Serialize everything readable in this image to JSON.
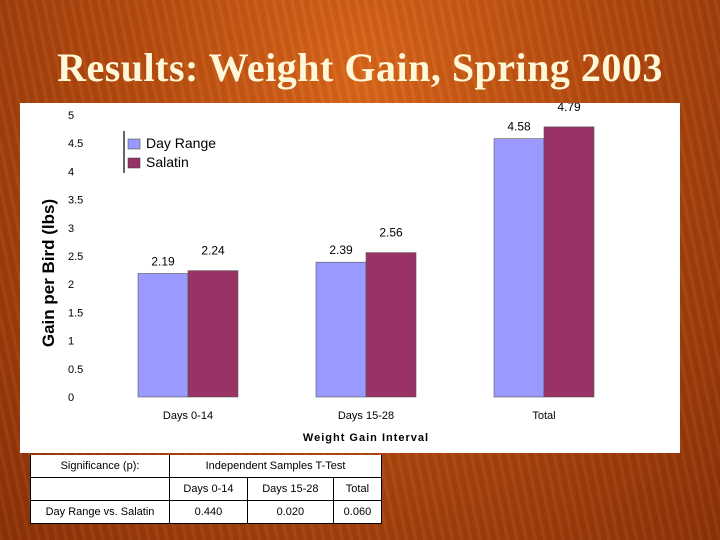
{
  "slide": {
    "title": "Results: Weight Gain, Spring 2003"
  },
  "chart_data": {
    "type": "bar",
    "categories": [
      "Days 0-14",
      "Days 15-28",
      "Total"
    ],
    "series": [
      {
        "name": "Day Range",
        "values": [
          2.19,
          2.39,
          4.58
        ],
        "color": "#9999ff"
      },
      {
        "name": "Salatin",
        "values": [
          2.24,
          2.56,
          4.79
        ],
        "color": "#993366"
      }
    ],
    "value_labels": [
      [
        "2.19",
        "2.39",
        "4.58"
      ],
      [
        "2.24",
        "2.56",
        "4.79"
      ]
    ],
    "xlabel": "Weight Gain Interval",
    "ylabel": "Gain per Bird (lbs)",
    "ylim": [
      0,
      5
    ],
    "yticks": [
      "0",
      "0.5",
      "1",
      "1.5",
      "2",
      "2.5",
      "3",
      "3.5",
      "4",
      "4.5",
      "5"
    ],
    "grid": false,
    "legend_position": "top-left"
  },
  "significance_table": {
    "label": "Significance (p):",
    "test": "Independent Samples T-Test",
    "columns": [
      "Days 0-14",
      "Days 15-28",
      "Total"
    ],
    "row_label": "Day Range vs. Salatin",
    "values": [
      "0.440",
      "0.020",
      "0.060"
    ]
  }
}
